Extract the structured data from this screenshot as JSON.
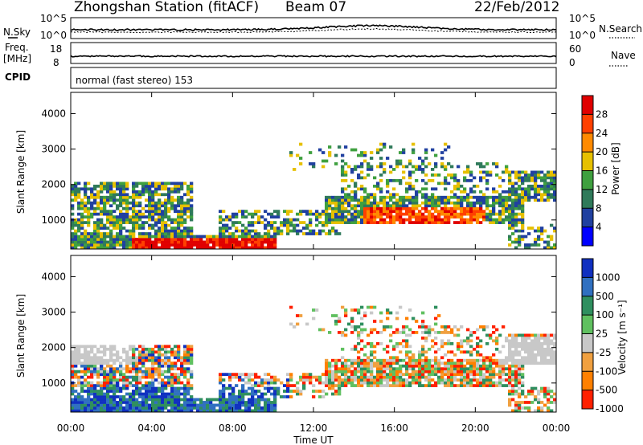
{
  "header": {
    "station": "Zhongshan Station (fitACF)",
    "beam": "Beam 07",
    "date": "22/Feb/2012"
  },
  "sky_panel": {
    "left_label": "N.Sky",
    "right_label": "N.Search",
    "left_ticks": [
      "10^5",
      "10^0"
    ],
    "right_ticks": [
      "10^5",
      "10^0"
    ]
  },
  "freq_panel": {
    "left_label_1": "Freq.",
    "left_label_2": "[MHz]",
    "right_label": "Nave",
    "left_ticks": [
      "18",
      "8"
    ],
    "right_ticks": [
      "60",
      "0"
    ]
  },
  "cpid_panel": {
    "label": "CPID",
    "text": "normal (fast stereo) 153"
  },
  "chart_data": [
    {
      "type": "heatmap",
      "name": "power",
      "ylabel": "Slant Range [km]",
      "yticks": [
        1000,
        2000,
        3000,
        4000
      ],
      "colorbar_label": "Power [dB]",
      "colorbar_ticks": [
        "28",
        "24",
        "20",
        "16",
        "12",
        "8",
        "4"
      ],
      "colors": [
        "#e00000",
        "#ff4000",
        "#ff8a00",
        "#e6c000",
        "#3fa03f",
        "#2f7a5a",
        "#2040a0",
        "#0000ff"
      ]
    },
    {
      "type": "heatmap",
      "name": "velocity",
      "ylabel": "Slant Range [km]",
      "yticks": [
        1000,
        2000,
        3000,
        4000
      ],
      "colorbar_label": "Velocity [m s⁻¹]",
      "colorbar_ticks": [
        "1000",
        "500",
        "100",
        "25",
        "-25",
        "-100",
        "-500",
        "-1000"
      ],
      "colors": [
        "#1030c0",
        "#3070c0",
        "#2f8f5f",
        "#60c060",
        "#c8c8c8",
        "#f0a040",
        "#ff8000",
        "#ff2000"
      ]
    }
  ],
  "x_axis": {
    "ticks": [
      "00:00",
      "04:00",
      "08:00",
      "12:00",
      "16:00",
      "20:00",
      "00:00"
    ],
    "label": "Time UT"
  }
}
